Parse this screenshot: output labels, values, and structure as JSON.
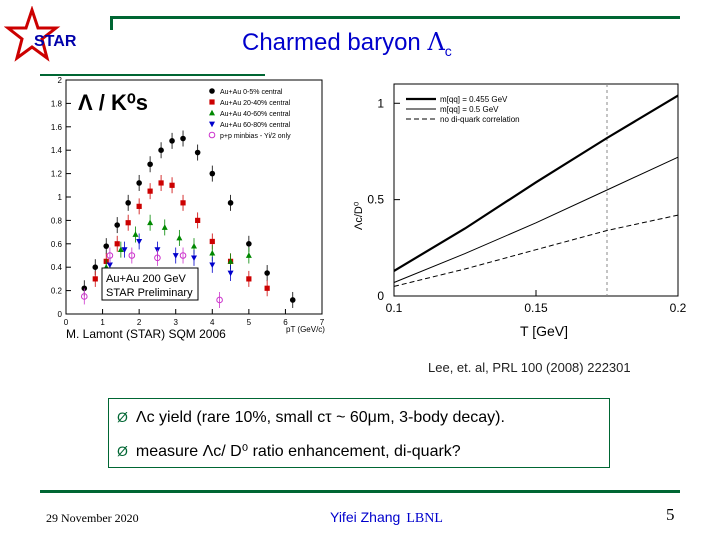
{
  "header": {
    "logo_text": "STAR",
    "title_main": "Charmed baryon ",
    "title_lambda": "Λ",
    "title_sub": "c"
  },
  "left_plot": {
    "y_label": "Λ / K⁰s",
    "x_label": "pT (GeV/c)",
    "y_ticks": [
      "0",
      "0.2",
      "0.4",
      "0.6",
      "0.8",
      "1",
      "1.2",
      "1.4",
      "1.6",
      "1.8",
      "2"
    ],
    "x_ticks": [
      "0",
      "1",
      "2",
      "3",
      "4",
      "5",
      "6",
      "7"
    ],
    "legend": [
      {
        "label": "Au+Au 0-5% central",
        "color": "#000000",
        "marker": "circle"
      },
      {
        "label": "Au+Au 20-40% central",
        "color": "#cc0000",
        "marker": "square"
      },
      {
        "label": "Au+Au 40-60% central",
        "color": "#008800",
        "marker": "triangle-up"
      },
      {
        "label": "Au+Au 60-80% central",
        "color": "#0000cc",
        "marker": "triangle-down"
      },
      {
        "label": "p+p minbias - Yi/2 only",
        "color": "#cc33cc",
        "marker": "open-circle"
      }
    ],
    "label_box": [
      "Au+Au 200 GeV",
      "STAR Preliminary"
    ],
    "credit": "M. Lamont (STAR) SQM 2006",
    "chart_data": {
      "type": "scatter",
      "ylabel": "Λ / K⁰s",
      "xlabel": "pT (GeV/c)",
      "xlim": [
        0,
        7
      ],
      "ylim": [
        0,
        2
      ],
      "series": [
        {
          "name": "Au+Au 0-5% central",
          "x": [
            0.5,
            0.8,
            1.1,
            1.4,
            1.7,
            2.0,
            2.3,
            2.6,
            2.9,
            3.2,
            3.6,
            4.0,
            4.5,
            5.0,
            5.5,
            6.2
          ],
          "y": [
            0.22,
            0.4,
            0.58,
            0.76,
            0.95,
            1.12,
            1.28,
            1.4,
            1.48,
            1.5,
            1.38,
            1.2,
            0.95,
            0.6,
            0.35,
            0.12
          ]
        },
        {
          "name": "Au+Au 20-40% central",
          "x": [
            0.8,
            1.1,
            1.4,
            1.7,
            2.0,
            2.3,
            2.6,
            2.9,
            3.2,
            3.6,
            4.0,
            4.5,
            5.0,
            5.5
          ],
          "y": [
            0.3,
            0.45,
            0.6,
            0.78,
            0.92,
            1.05,
            1.12,
            1.1,
            0.95,
            0.8,
            0.62,
            0.45,
            0.3,
            0.22
          ]
        },
        {
          "name": "Au+Au 40-60% central",
          "x": [
            1.1,
            1.5,
            1.9,
            2.3,
            2.7,
            3.1,
            3.5,
            4.0,
            4.5,
            5.0
          ],
          "y": [
            0.4,
            0.55,
            0.68,
            0.78,
            0.74,
            0.65,
            0.58,
            0.52,
            0.45,
            0.5
          ]
        },
        {
          "name": "Au+Au 60-80% central",
          "x": [
            1.2,
            1.6,
            2.0,
            2.5,
            3.0,
            3.5,
            4.0,
            4.5
          ],
          "y": [
            0.42,
            0.55,
            0.62,
            0.55,
            0.5,
            0.48,
            0.42,
            0.35
          ]
        },
        {
          "name": "p+p minbias - Yi/2 only",
          "x": [
            0.5,
            1.2,
            1.8,
            2.5,
            3.2,
            4.2
          ],
          "y": [
            0.15,
            0.5,
            0.5,
            0.48,
            0.5,
            0.12
          ]
        }
      ]
    }
  },
  "right_plot": {
    "y_label": "Λc/D⁰",
    "x_label": "T [GeV]",
    "y_ticks": [
      "0",
      "0.5",
      "1"
    ],
    "x_ticks": [
      "0.1",
      "0.15",
      "0.2"
    ],
    "legend": [
      {
        "label": "m[qq] = 0.455 GeV",
        "style": "solid-thick"
      },
      {
        "label": "m[qq] = 0.5 GeV",
        "style": "solid-thin"
      },
      {
        "label": "no di-quark correlation",
        "style": "dashed"
      }
    ],
    "chart_data": {
      "type": "line",
      "xlabel": "T [GeV]",
      "ylabel": "Λc/D⁰",
      "xlim": [
        0.1,
        0.2
      ],
      "ylim": [
        0,
        1.1
      ],
      "x": [
        0.1,
        0.125,
        0.15,
        0.175,
        0.2
      ],
      "series": [
        {
          "name": "m[qq] = 0.455 GeV",
          "values": [
            0.13,
            0.35,
            0.59,
            0.82,
            1.04
          ]
        },
        {
          "name": "m[qq] = 0.5 GeV",
          "values": [
            0.07,
            0.22,
            0.38,
            0.55,
            0.72
          ]
        },
        {
          "name": "no di-quark correlation",
          "values": [
            0.05,
            0.14,
            0.24,
            0.34,
            0.42
          ]
        }
      ],
      "vline_x": 0.175
    }
  },
  "caption": "Lee, et. al, PRL 100 (2008) 222301",
  "bullets": [
    {
      "arrow": "Ø",
      "pre": "Λc yield (rare 10%, small cτ ~ 60μm, 3-body decay)."
    },
    {
      "arrow": "Ø",
      "pre": "measure Λc/ D⁰ ratio enhancement, di-quark?"
    }
  ],
  "footer": {
    "date": "29 November 2020",
    "author": "Yifei Zhang",
    "institution": "LBNL",
    "page": "5"
  },
  "colors": {
    "accent_green": "#006633",
    "title_blue": "#0000cc"
  }
}
